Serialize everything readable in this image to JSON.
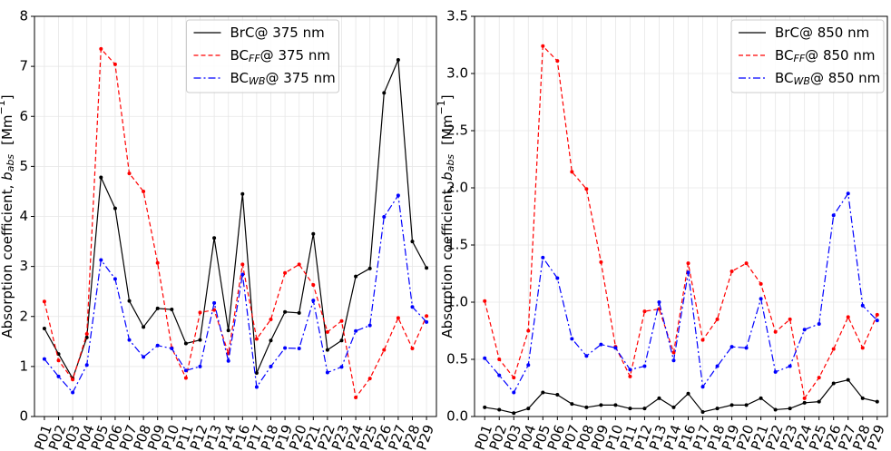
{
  "chart_data": [
    {
      "type": "line",
      "ylabel": [
        "Absorption coefficient, ",
        "b",
        "abs",
        "[Mm",
        "−1",
        "]"
      ],
      "categories": [
        "P01",
        "P02",
        "P03",
        "P04",
        "P05",
        "P06",
        "P07",
        "P08",
        "P09",
        "P10",
        "P11",
        "P12",
        "P13",
        "P14",
        "P16",
        "P17",
        "P18",
        "P19",
        "P20",
        "P21",
        "P22",
        "P23",
        "P24",
        "P25",
        "P26",
        "P27",
        "P28",
        "P29"
      ],
      "ylim": [
        0,
        8
      ],
      "yticks": [
        0,
        1,
        2,
        3,
        4,
        5,
        6,
        7,
        8
      ],
      "grid": true,
      "legend": "upper center",
      "series": [
        {
          "name": [
            "BrC",
            "",
            "@ 375 nm"
          ],
          "color": "#000000",
          "linestyle": "-",
          "values": [
            1.76,
            1.25,
            0.76,
            1.58,
            4.78,
            4.16,
            2.31,
            1.79,
            2.16,
            2.14,
            1.46,
            1.53,
            3.57,
            1.72,
            4.45,
            0.87,
            1.52,
            2.09,
            2.07,
            3.65,
            1.33,
            1.52,
            2.8,
            2.96,
            6.47,
            7.13,
            3.5,
            2.97
          ]
        },
        {
          "name": [
            "BC",
            "FF",
            "@ 375 nm"
          ],
          "color": "#ff0000",
          "linestyle": "--",
          "values": [
            2.3,
            1.12,
            0.74,
            1.65,
            7.35,
            7.04,
            4.86,
            4.5,
            3.07,
            1.37,
            0.77,
            2.08,
            2.13,
            1.26,
            3.04,
            1.55,
            1.94,
            2.87,
            3.04,
            2.63,
            1.69,
            1.91,
            0.38,
            0.76,
            1.33,
            1.97,
            1.36,
            2.01
          ]
        },
        {
          "name": [
            "BC",
            "WB",
            "@ 375 nm"
          ],
          "color": "#0000ff",
          "linestyle": "-.",
          "values": [
            1.15,
            0.8,
            0.48,
            1.03,
            3.13,
            2.75,
            1.53,
            1.19,
            1.42,
            1.36,
            0.92,
            1.0,
            2.27,
            1.11,
            2.84,
            0.59,
            1.0,
            1.37,
            1.36,
            2.32,
            0.88,
            0.99,
            1.71,
            1.82,
            3.99,
            4.42,
            2.19,
            1.89
          ]
        }
      ]
    },
    {
      "type": "line",
      "ylabel": [
        "Absorption coefficient, ",
        "b",
        "abs",
        "[Mm",
        "−1",
        "]"
      ],
      "categories": [
        "P01",
        "P02",
        "P03",
        "P04",
        "P05",
        "P06",
        "P07",
        "P08",
        "P09",
        "P10",
        "P11",
        "P12",
        "P13",
        "P14",
        "P16",
        "P17",
        "P18",
        "P19",
        "P20",
        "P21",
        "P22",
        "P23",
        "P24",
        "P25",
        "P26",
        "P27",
        "P28",
        "P29"
      ],
      "ylim": [
        0,
        3.5
      ],
      "yticks": [
        {
          "value": 0,
          "label": "0.0"
        },
        0.5,
        {
          "value": 1,
          "label": "1.0"
        },
        1.5,
        {
          "value": 2,
          "label": "2.0"
        },
        2.5,
        {
          "value": 3,
          "label": "3.0"
        },
        3.5
      ],
      "grid": true,
      "legend": "upper right",
      "series": [
        {
          "name": [
            "BrC",
            "",
            "@ 850 nm"
          ],
          "color": "#000000",
          "linestyle": "-",
          "values": [
            0.08,
            0.06,
            0.03,
            0.07,
            0.21,
            0.19,
            0.11,
            0.08,
            0.1,
            0.1,
            0.07,
            0.07,
            0.16,
            0.08,
            0.2,
            0.04,
            0.07,
            0.1,
            0.1,
            0.16,
            0.06,
            0.07,
            0.12,
            0.13,
            0.29,
            0.32,
            0.16,
            0.13
          ]
        },
        {
          "name": [
            "BC",
            "FF",
            "@ 850 nm"
          ],
          "color": "#ff0000",
          "linestyle": "--",
          "values": [
            1.01,
            0.5,
            0.34,
            0.75,
            3.24,
            3.11,
            2.14,
            1.99,
            1.35,
            0.61,
            0.35,
            0.92,
            0.94,
            0.56,
            1.34,
            0.67,
            0.85,
            1.27,
            1.34,
            1.16,
            0.74,
            0.85,
            0.16,
            0.34,
            0.59,
            0.87,
            0.6,
            0.89
          ]
        },
        {
          "name": [
            "BC",
            "WB",
            "@ 850 nm"
          ],
          "color": "#0000ff",
          "linestyle": "-.",
          "values": [
            0.51,
            0.36,
            0.21,
            0.45,
            1.39,
            1.21,
            0.68,
            0.53,
            0.63,
            0.6,
            0.41,
            0.44,
            1.0,
            0.49,
            1.26,
            0.26,
            0.44,
            0.61,
            0.6,
            1.03,
            0.39,
            0.44,
            0.76,
            0.81,
            1.76,
            1.95,
            0.97,
            0.84
          ]
        }
      ]
    }
  ]
}
